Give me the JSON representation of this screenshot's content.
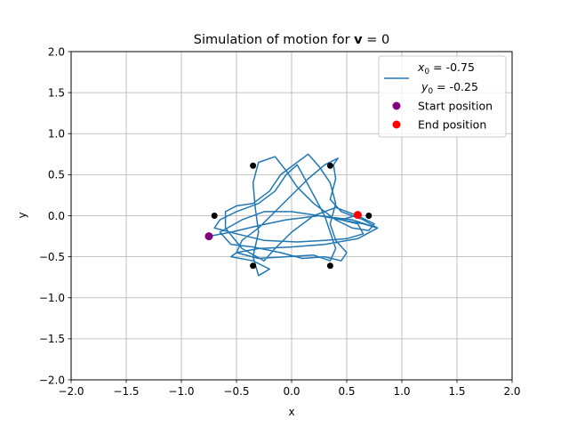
{
  "chart_data": {
    "type": "line",
    "title_prefix": "Simulation of motion for ",
    "title_bold": "v",
    "title_suffix": " = 0",
    "xlabel": "x",
    "ylabel": "y",
    "xlim": [
      -2.0,
      2.0
    ],
    "ylim": [
      -2.0,
      2.0
    ],
    "xticks": [
      -2.0,
      -1.5,
      -1.0,
      -0.5,
      0.0,
      0.5,
      1.0,
      1.5,
      2.0
    ],
    "yticks": [
      -2.0,
      -1.5,
      -1.0,
      -0.5,
      0.0,
      0.5,
      1.0,
      1.5,
      2.0
    ],
    "xtick_labels": [
      "−2.0",
      "−1.5",
      "−1.0",
      "−0.5",
      "0.0",
      "0.5",
      "1.0",
      "1.5",
      "2.0"
    ],
    "ytick_labels": [
      "−2.0",
      "−1.5",
      "−1.0",
      "−0.5",
      "0.0",
      "0.5",
      "1.0",
      "1.5",
      "2.0"
    ],
    "grid": true,
    "legend_position": "upper right",
    "legend": {
      "line_label_1": "x",
      "line_label_1_sub": "0",
      "line_label_1_value": " = -0.75",
      "line_label_2": "y",
      "line_label_2_sub": "0",
      "line_label_2_value": " = -0.25",
      "start_label": "Start position",
      "end_label": "End position"
    },
    "colors": {
      "trajectory": "#1f77b4",
      "start": "#800080",
      "end": "#ff0000",
      "fixed_points": "#000000",
      "grid": "#b0b0b0"
    },
    "fixed_points": [
      {
        "x": 0.35,
        "y": 0.61
      },
      {
        "x": -0.35,
        "y": 0.61
      },
      {
        "x": -0.7,
        "y": 0.0
      },
      {
        "x": 0.7,
        "y": 0.0
      },
      {
        "x": -0.35,
        "y": -0.61
      },
      {
        "x": 0.35,
        "y": -0.61
      }
    ],
    "start_position": {
      "x": -0.75,
      "y": -0.25
    },
    "end_position": {
      "x": 0.6,
      "y": 0.01
    },
    "trajectory": [
      [
        -0.75,
        -0.25
      ],
      [
        -0.55,
        -0.2
      ],
      [
        -0.3,
        -0.12
      ],
      [
        -0.05,
        -0.05
      ],
      [
        0.25,
        0.0
      ],
      [
        0.55,
        -0.05
      ],
      [
        0.78,
        -0.15
      ],
      [
        0.6,
        -0.28
      ],
      [
        0.3,
        -0.35
      ],
      [
        0.0,
        -0.38
      ],
      [
        -0.3,
        -0.4
      ],
      [
        -0.5,
        -0.45
      ],
      [
        -0.55,
        -0.5
      ],
      [
        -0.35,
        -0.55
      ],
      [
        -0.2,
        -0.65
      ],
      [
        -0.3,
        -0.73
      ],
      [
        -0.35,
        -0.5
      ],
      [
        -0.3,
        -0.2
      ],
      [
        -0.33,
        0.1
      ],
      [
        -0.35,
        0.4
      ],
      [
        -0.3,
        0.65
      ],
      [
        -0.15,
        0.72
      ],
      [
        -0.05,
        0.55
      ],
      [
        0.05,
        0.35
      ],
      [
        0.2,
        0.15
      ],
      [
        0.4,
        -0.05
      ],
      [
        0.55,
        -0.15
      ],
      [
        0.7,
        -0.18
      ],
      [
        0.75,
        -0.1
      ],
      [
        0.6,
        0.0
      ],
      [
        0.4,
        0.1
      ],
      [
        0.2,
        0.0
      ],
      [
        0.0,
        -0.2
      ],
      [
        -0.15,
        -0.4
      ],
      [
        -0.25,
        -0.55
      ],
      [
        -0.45,
        -0.4
      ],
      [
        -0.6,
        -0.15
      ],
      [
        -0.6,
        0.05
      ],
      [
        -0.5,
        0.12
      ],
      [
        -0.35,
        0.15
      ],
      [
        -0.2,
        0.3
      ],
      [
        -0.1,
        0.5
      ],
      [
        0.05,
        0.65
      ],
      [
        0.15,
        0.75
      ],
      [
        0.25,
        0.6
      ],
      [
        0.35,
        0.4
      ],
      [
        0.4,
        0.15
      ],
      [
        0.35,
        -0.1
      ],
      [
        0.4,
        -0.3
      ],
      [
        0.5,
        -0.45
      ],
      [
        0.45,
        -0.55
      ],
      [
        0.3,
        -0.5
      ],
      [
        0.1,
        -0.52
      ],
      [
        -0.1,
        -0.45
      ],
      [
        -0.35,
        -0.38
      ],
      [
        -0.55,
        -0.35
      ],
      [
        -0.65,
        -0.2
      ],
      [
        -0.45,
        -0.05
      ],
      [
        -0.25,
        0.05
      ],
      [
        0.0,
        0.05
      ],
      [
        0.25,
        0.0
      ],
      [
        0.45,
        -0.05
      ],
      [
        0.65,
        -0.1
      ],
      [
        0.78,
        -0.15
      ],
      [
        0.65,
        -0.05
      ],
      [
        0.45,
        0.05
      ],
      [
        0.35,
        0.2
      ],
      [
        0.4,
        0.45
      ],
      [
        0.38,
        0.62
      ],
      [
        0.42,
        0.7
      ],
      [
        0.3,
        0.62
      ],
      [
        0.15,
        0.45
      ],
      [
        0.0,
        0.25
      ],
      [
        -0.15,
        0.05
      ],
      [
        -0.3,
        -0.15
      ],
      [
        -0.45,
        -0.3
      ],
      [
        -0.5,
        -0.45
      ],
      [
        -0.3,
        -0.52
      ],
      [
        -0.05,
        -0.5
      ],
      [
        0.2,
        -0.48
      ],
      [
        0.35,
        -0.55
      ],
      [
        0.4,
        -0.4
      ],
      [
        0.35,
        -0.2
      ],
      [
        0.3,
        0.0
      ],
      [
        0.2,
        0.25
      ],
      [
        0.1,
        0.5
      ],
      [
        0.05,
        0.62
      ],
      [
        -0.05,
        0.5
      ],
      [
        -0.15,
        0.3
      ],
      [
        -0.3,
        0.15
      ],
      [
        -0.5,
        0.05
      ],
      [
        -0.65,
        -0.05
      ],
      [
        -0.7,
        -0.15
      ],
      [
        -0.5,
        -0.22
      ],
      [
        -0.25,
        -0.3
      ],
      [
        0.05,
        -0.32
      ],
      [
        0.3,
        -0.3
      ],
      [
        0.5,
        -0.28
      ],
      [
        0.65,
        -0.22
      ],
      [
        0.6,
        -0.1
      ],
      [
        0.45,
        -0.05
      ],
      [
        0.6,
        0.01
      ]
    ]
  }
}
